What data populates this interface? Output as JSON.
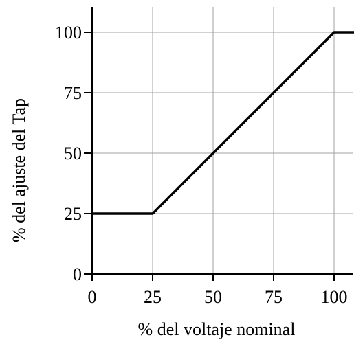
{
  "chart_data": {
    "type": "line",
    "title": "",
    "xlabel": "% del voltaje nominal",
    "ylabel": "% del ajuste del Tap",
    "xlim": [
      0,
      110
    ],
    "ylim": [
      0,
      110
    ],
    "x_ticks": [
      0,
      25,
      50,
      75,
      100
    ],
    "y_ticks": [
      0,
      25,
      50,
      75,
      100
    ],
    "grid": true,
    "series": [
      {
        "x": [
          0,
          25,
          100,
          110
        ],
        "y": [
          25,
          25,
          100,
          100
        ]
      }
    ]
  }
}
